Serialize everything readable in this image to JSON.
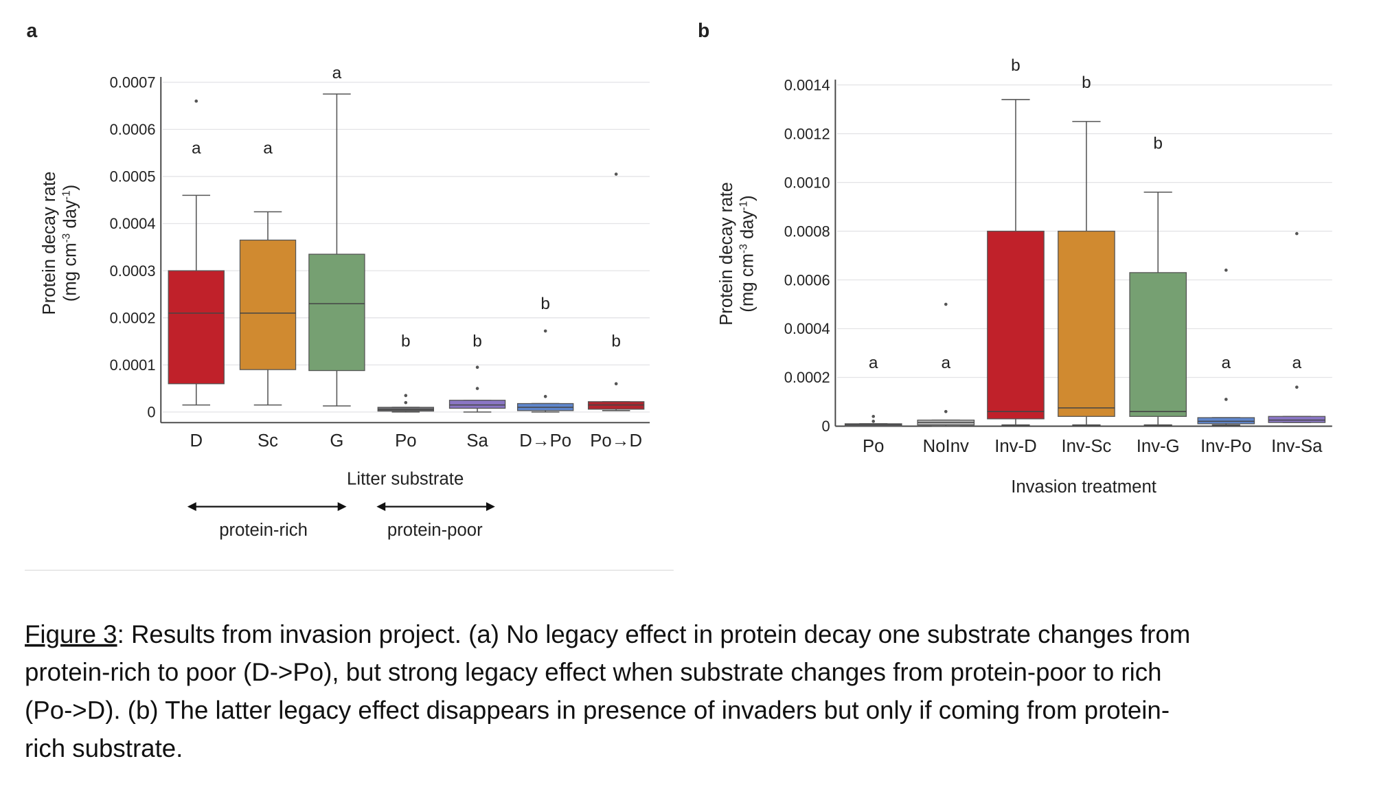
{
  "chart_data": [
    {
      "type": "box",
      "panel_label": "a",
      "ylabel": [
        "Protein decay rate",
        "(mg cm",
        "-3",
        " day",
        "-1",
        ")"
      ],
      "xlabel": "Litter substrate",
      "ylim": [
        0,
        0.0007
      ],
      "yticks": [
        "0",
        "0.0001",
        "0.0002",
        "0.0003",
        "0.0004",
        "0.0005",
        "0.0006",
        "0.0007"
      ],
      "grid": true,
      "groups_annotation": [
        {
          "label": "protein-rich"
        },
        {
          "label": "protein-poor"
        }
      ],
      "boxes": [
        {
          "category": "D",
          "color": "#c0212a",
          "min": 1.5e-05,
          "q1": 6e-05,
          "median": 0.00021,
          "q3": 0.0003,
          "max": 0.00046,
          "outliers": [
            0.00066
          ],
          "letter": "a",
          "letter_y": 0.00056
        },
        {
          "category": "Sc",
          "color": "#d08a30",
          "min": 1.5e-05,
          "q1": 9e-05,
          "median": 0.00021,
          "q3": 0.000365,
          "max": 0.000425,
          "outliers": [],
          "letter": "a",
          "letter_y": 0.00056
        },
        {
          "category": "G",
          "color": "#76a072",
          "min": 1.3e-05,
          "q1": 8.8e-05,
          "median": 0.00023,
          "q3": 0.000335,
          "max": 0.000675,
          "outliers": [],
          "letter": "a",
          "letter_y": 0.00072
        },
        {
          "category": "Po",
          "color": "#6d6d72",
          "min": 0.0,
          "q1": 2e-06,
          "median": 5e-06,
          "q3": 1e-05,
          "max": 1e-05,
          "outliers": [
            2e-05,
            3.5e-05
          ],
          "letter": "b",
          "letter_y": 0.00015
        },
        {
          "category": "Sa",
          "color": "#8a76c4",
          "min": 0.0,
          "q1": 8e-06,
          "median": 1.5e-05,
          "q3": 2.5e-05,
          "max": 2.5e-05,
          "outliers": [
            5e-05,
            9.5e-05
          ],
          "letter": "b",
          "letter_y": 0.00015
        },
        {
          "category": "D→Po",
          "color": "#5f86cc",
          "min": 0.0,
          "q1": 3e-06,
          "median": 1e-05,
          "q3": 1.8e-05,
          "max": 1.8e-05,
          "outliers": [
            3.3e-05,
            0.000172
          ],
          "letter": "b",
          "letter_y": 0.00023
        },
        {
          "category": "Po→D",
          "color": "#b0262e",
          "min": 3e-06,
          "q1": 6e-06,
          "median": 1.5e-05,
          "q3": 2.2e-05,
          "max": 2.2e-05,
          "outliers": [
            6e-05,
            0.000505
          ],
          "letter": "b",
          "letter_y": 0.00015
        }
      ]
    },
    {
      "type": "box",
      "panel_label": "b",
      "ylabel": [
        "Protein decay rate",
        "(mg cm",
        "-3",
        " day",
        "-1",
        ")"
      ],
      "xlabel": "Invasion treatment",
      "ylim": [
        0,
        0.0014
      ],
      "yticks": [
        "0",
        "0.0002",
        "0.0004",
        "0.0006",
        "0.0008",
        "0.0010",
        "0.0012",
        "0.0014"
      ],
      "grid": true,
      "boxes": [
        {
          "category": "Po",
          "color": "#6d6d72",
          "min": 0.0,
          "q1": 3e-06,
          "median": 5e-06,
          "q3": 1e-05,
          "max": 1e-05,
          "outliers": [
            2e-05,
            4e-05
          ],
          "letter": "a",
          "letter_y": 0.00026
        },
        {
          "category": "NoInv",
          "color": "#b8b8b8",
          "min": 0.0,
          "q1": 5e-06,
          "median": 1.5e-05,
          "q3": 2.5e-05,
          "max": 2.5e-05,
          "outliers": [
            6e-05,
            0.0005
          ],
          "letter": "a",
          "letter_y": 0.00026
        },
        {
          "category": "Inv-D",
          "color": "#c0212a",
          "min": 5e-06,
          "q1": 3e-05,
          "median": 6e-05,
          "q3": 0.0008,
          "max": 0.00134,
          "outliers": [],
          "letter": "b",
          "letter_y": 0.00148
        },
        {
          "category": "Inv-Sc",
          "color": "#d08a30",
          "min": 5e-06,
          "q1": 4e-05,
          "median": 7.5e-05,
          "q3": 0.0008,
          "max": 0.00125,
          "outliers": [],
          "letter": "b",
          "letter_y": 0.00141
        },
        {
          "category": "Inv-G",
          "color": "#76a072",
          "min": 5e-06,
          "q1": 4e-05,
          "median": 6e-05,
          "q3": 0.00063,
          "max": 0.00096,
          "outliers": [],
          "letter": "b",
          "letter_y": 0.00116
        },
        {
          "category": "Inv-Po",
          "color": "#5f86cc",
          "min": 5e-06,
          "q1": 1e-05,
          "median": 2e-05,
          "q3": 3.5e-05,
          "max": 3.5e-05,
          "outliers": [
            0.00011,
            0.00064
          ],
          "letter": "a",
          "letter_y": 0.00026
        },
        {
          "category": "Inv-Sa",
          "color": "#8a76c4",
          "min": 1.5e-05,
          "q1": 1.5e-05,
          "median": 2.5e-05,
          "q3": 4e-05,
          "max": 4e-05,
          "outliers": [
            0.00016,
            0.00079
          ],
          "letter": "a",
          "letter_y": 0.00026
        }
      ]
    }
  ],
  "caption": {
    "figure_ref": "Figure 3",
    "lines": [
      ": Results from invasion project. (a) No legacy effect in protein decay one substrate changes from",
      "protein-rich to poor (D->Po), but strong legacy effect when substrate changes from protein-poor to rich",
      "(Po->D). (b) The latter legacy effect disappears in presence of invaders but only if coming from protein-",
      "rich substrate."
    ]
  }
}
